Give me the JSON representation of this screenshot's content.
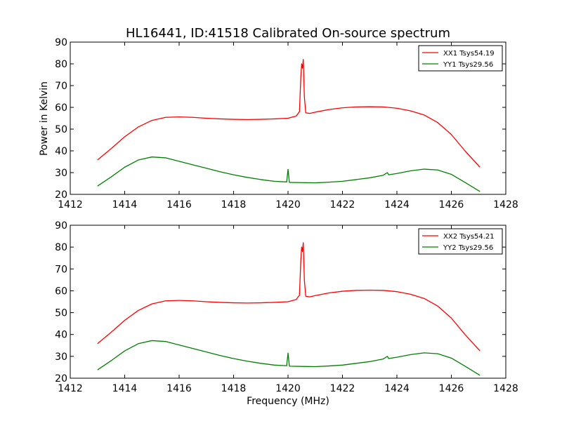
{
  "title": "HL16441, ID:41518 Calibrated On-source spectrum",
  "ylabel": "Power in Kelvin",
  "xlabel": "Frequency (MHz)",
  "colors": {
    "xx": "#ff0000",
    "yy": "#008000"
  },
  "chart_data": [
    {
      "type": "line",
      "xlim": [
        1412,
        1428
      ],
      "ylim": [
        20,
        90
      ],
      "xticks": [
        "1412",
        "1414",
        "1416",
        "1418",
        "1420",
        "1422",
        "1424",
        "1426",
        "1428"
      ],
      "yticks": [
        "20",
        "30",
        "40",
        "50",
        "60",
        "70",
        "80",
        "90"
      ],
      "legend_position": "top-right",
      "series": [
        {
          "name": "XX1 Tsys54.19",
          "color": "#ff0000",
          "points": [
            [
              1413.0,
              35.8
            ],
            [
              1413.5,
              41.0
            ],
            [
              1414.0,
              46.5
            ],
            [
              1414.5,
              51.0
            ],
            [
              1415.0,
              54.0
            ],
            [
              1415.5,
              55.4
            ],
            [
              1416.0,
              55.6
            ],
            [
              1416.5,
              55.4
            ],
            [
              1417.0,
              55.0
            ],
            [
              1417.5,
              54.7
            ],
            [
              1418.0,
              54.5
            ],
            [
              1418.5,
              54.4
            ],
            [
              1419.0,
              54.5
            ],
            [
              1419.5,
              54.7
            ],
            [
              1420.0,
              55.0
            ],
            [
              1420.3,
              56.0
            ],
            [
              1420.42,
              58.0
            ],
            [
              1420.47,
              74.0
            ],
            [
              1420.5,
              80.0
            ],
            [
              1420.53,
              78.0
            ],
            [
              1420.56,
              82.0
            ],
            [
              1420.6,
              65.0
            ],
            [
              1420.65,
              57.5
            ],
            [
              1420.8,
              57.2
            ],
            [
              1421.0,
              57.8
            ],
            [
              1421.5,
              59.0
            ],
            [
              1422.0,
              59.8
            ],
            [
              1422.5,
              60.2
            ],
            [
              1423.0,
              60.3
            ],
            [
              1423.5,
              60.2
            ],
            [
              1424.0,
              59.6
            ],
            [
              1424.5,
              58.4
            ],
            [
              1425.0,
              56.5
            ],
            [
              1425.5,
              53.0
            ],
            [
              1426.0,
              47.5
            ],
            [
              1426.5,
              40.0
            ],
            [
              1427.05,
              32.5
            ]
          ]
        },
        {
          "name": "YY1 Tsys29.56",
          "color": "#008000",
          "points": [
            [
              1413.0,
              23.8
            ],
            [
              1413.5,
              28.0
            ],
            [
              1414.0,
              32.5
            ],
            [
              1414.5,
              35.8
            ],
            [
              1415.0,
              37.2
            ],
            [
              1415.5,
              36.8
            ],
            [
              1416.0,
              35.2
            ],
            [
              1416.5,
              33.6
            ],
            [
              1417.0,
              32.0
            ],
            [
              1417.5,
              30.4
            ],
            [
              1418.0,
              29.0
            ],
            [
              1418.5,
              27.8
            ],
            [
              1419.0,
              26.8
            ],
            [
              1419.5,
              26.0
            ],
            [
              1419.95,
              25.7
            ],
            [
              1420.0,
              31.5
            ],
            [
              1420.05,
              25.5
            ],
            [
              1420.5,
              25.4
            ],
            [
              1421.0,
              25.3
            ],
            [
              1421.5,
              25.6
            ],
            [
              1422.0,
              26.0
            ],
            [
              1422.5,
              26.8
            ],
            [
              1423.0,
              27.6
            ],
            [
              1423.5,
              28.8
            ],
            [
              1423.65,
              30.0
            ],
            [
              1423.7,
              29.0
            ],
            [
              1424.0,
              29.6
            ],
            [
              1424.5,
              30.8
            ],
            [
              1425.0,
              31.6
            ],
            [
              1425.5,
              31.2
            ],
            [
              1426.0,
              29.2
            ],
            [
              1426.5,
              25.5
            ],
            [
              1427.05,
              21.3
            ]
          ]
        }
      ]
    },
    {
      "type": "line",
      "xlim": [
        1412,
        1428
      ],
      "ylim": [
        20,
        90
      ],
      "xticks": [
        "1412",
        "1414",
        "1416",
        "1418",
        "1420",
        "1422",
        "1424",
        "1426",
        "1428"
      ],
      "yticks": [
        "20",
        "30",
        "40",
        "50",
        "60",
        "70",
        "80",
        "90"
      ],
      "legend_position": "top-right",
      "series": [
        {
          "name": "XX2 Tsys54.21",
          "color": "#ff0000",
          "points": [
            [
              1413.0,
              35.8
            ],
            [
              1413.5,
              41.0
            ],
            [
              1414.0,
              46.5
            ],
            [
              1414.5,
              51.0
            ],
            [
              1415.0,
              54.0
            ],
            [
              1415.5,
              55.4
            ],
            [
              1416.0,
              55.6
            ],
            [
              1416.5,
              55.4
            ],
            [
              1417.0,
              55.0
            ],
            [
              1417.5,
              54.7
            ],
            [
              1418.0,
              54.5
            ],
            [
              1418.5,
              54.4
            ],
            [
              1419.0,
              54.5
            ],
            [
              1419.5,
              54.7
            ],
            [
              1420.0,
              55.0
            ],
            [
              1420.3,
              56.0
            ],
            [
              1420.42,
              58.0
            ],
            [
              1420.47,
              74.0
            ],
            [
              1420.5,
              80.0
            ],
            [
              1420.53,
              78.0
            ],
            [
              1420.56,
              82.0
            ],
            [
              1420.6,
              65.0
            ],
            [
              1420.65,
              57.5
            ],
            [
              1420.8,
              57.2
            ],
            [
              1421.0,
              57.8
            ],
            [
              1421.5,
              59.0
            ],
            [
              1422.0,
              59.8
            ],
            [
              1422.5,
              60.2
            ],
            [
              1423.0,
              60.3
            ],
            [
              1423.5,
              60.2
            ],
            [
              1424.0,
              59.6
            ],
            [
              1424.5,
              58.4
            ],
            [
              1425.0,
              56.5
            ],
            [
              1425.5,
              53.0
            ],
            [
              1426.0,
              47.5
            ],
            [
              1426.5,
              40.0
            ],
            [
              1427.05,
              32.5
            ]
          ]
        },
        {
          "name": "YY2 Tsys29.56",
          "color": "#008000",
          "points": [
            [
              1413.0,
              23.8
            ],
            [
              1413.5,
              28.0
            ],
            [
              1414.0,
              32.5
            ],
            [
              1414.5,
              35.8
            ],
            [
              1415.0,
              37.2
            ],
            [
              1415.5,
              36.8
            ],
            [
              1416.0,
              35.2
            ],
            [
              1416.5,
              33.6
            ],
            [
              1417.0,
              32.0
            ],
            [
              1417.5,
              30.4
            ],
            [
              1418.0,
              29.0
            ],
            [
              1418.5,
              27.8
            ],
            [
              1419.0,
              26.8
            ],
            [
              1419.5,
              26.0
            ],
            [
              1419.95,
              25.7
            ],
            [
              1420.0,
              31.5
            ],
            [
              1420.05,
              25.5
            ],
            [
              1420.5,
              25.4
            ],
            [
              1421.0,
              25.3
            ],
            [
              1421.5,
              25.6
            ],
            [
              1422.0,
              26.0
            ],
            [
              1422.5,
              26.8
            ],
            [
              1423.0,
              27.6
            ],
            [
              1423.5,
              28.8
            ],
            [
              1423.65,
              30.0
            ],
            [
              1423.7,
              29.0
            ],
            [
              1424.0,
              29.6
            ],
            [
              1424.5,
              30.8
            ],
            [
              1425.0,
              31.6
            ],
            [
              1425.5,
              31.2
            ],
            [
              1426.0,
              29.2
            ],
            [
              1426.5,
              25.5
            ],
            [
              1427.05,
              21.3
            ]
          ]
        }
      ]
    }
  ]
}
